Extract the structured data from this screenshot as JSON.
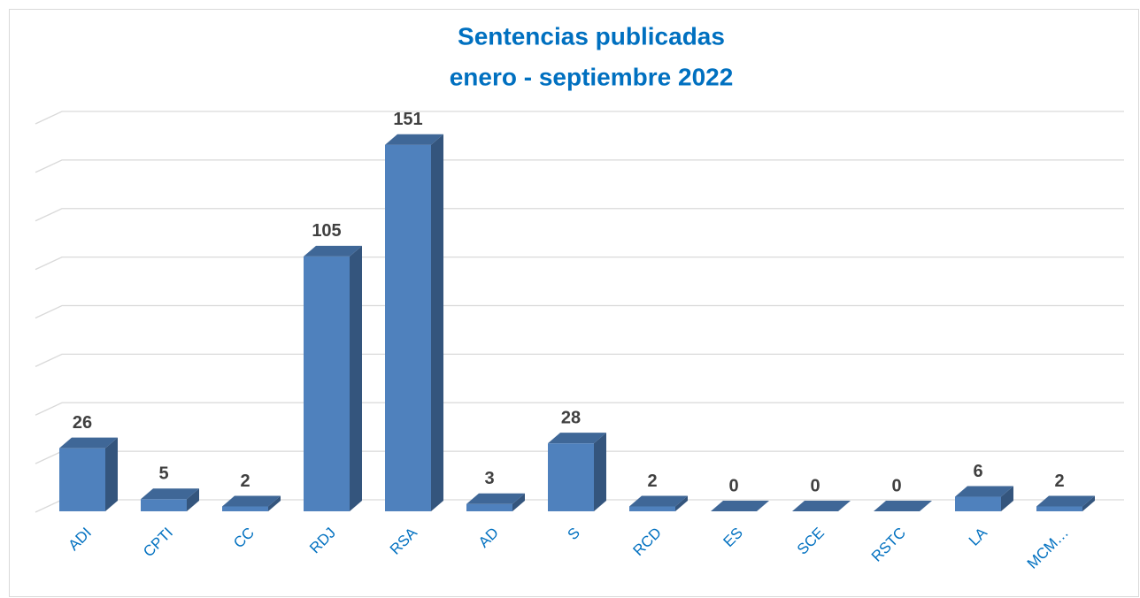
{
  "chart_data": {
    "type": "bar3d",
    "title": "Sentencias publicadas",
    "subtitle": "enero - septiembre 2022",
    "categories": [
      "ADI",
      "CPTI",
      "CC",
      "RDJ",
      "RSA",
      "AD",
      "S",
      "RCD",
      "ES",
      "SCE",
      "RSTC",
      "LA",
      "MCM…"
    ],
    "values": [
      26,
      5,
      2,
      105,
      151,
      3,
      28,
      2,
      0,
      0,
      0,
      6,
      2
    ],
    "color": "#4f81bd",
    "ylim": [
      0,
      160
    ],
    "yticks": [
      0,
      20,
      40,
      60,
      80,
      100,
      120,
      140,
      160
    ],
    "grid": true
  }
}
